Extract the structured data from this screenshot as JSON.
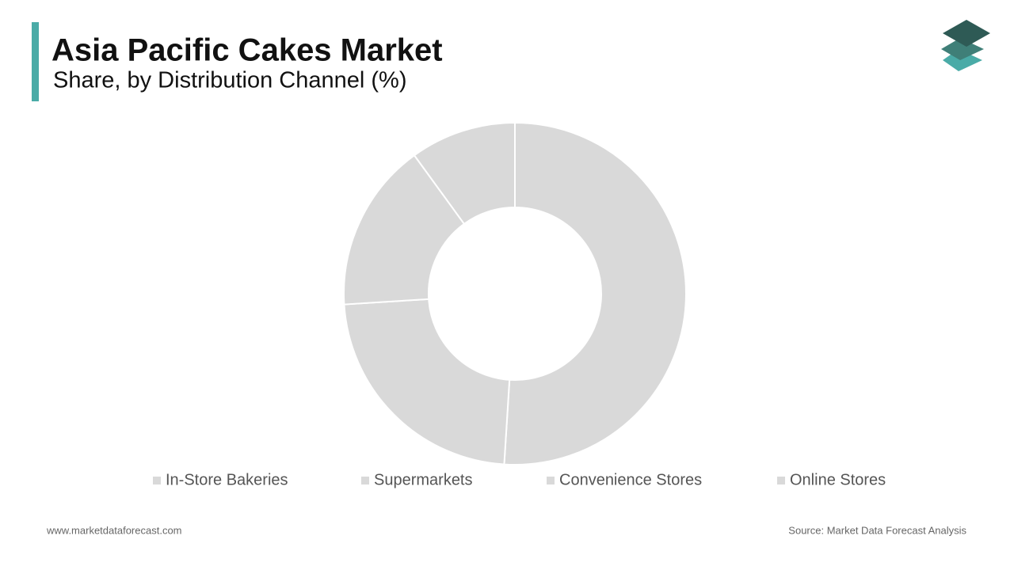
{
  "chart_data": {
    "type": "donut",
    "title": "Asia Pacific Cakes Market",
    "subtitle": "Share, by Distribution Channel (%)",
    "categories": [
      "In-Store Bakeries",
      "Supermarkets",
      "Convenience Stores",
      "Online Stores"
    ],
    "values": [
      51,
      23,
      16,
      10
    ],
    "colors": [
      "#d9d9d9",
      "#d9d9d9",
      "#d9d9d9",
      "#d9d9d9"
    ],
    "legend": "bottom"
  },
  "footer": {
    "website": "www.marketdataforecast.com",
    "source": "Source: Market Data Forecast Analysis"
  }
}
